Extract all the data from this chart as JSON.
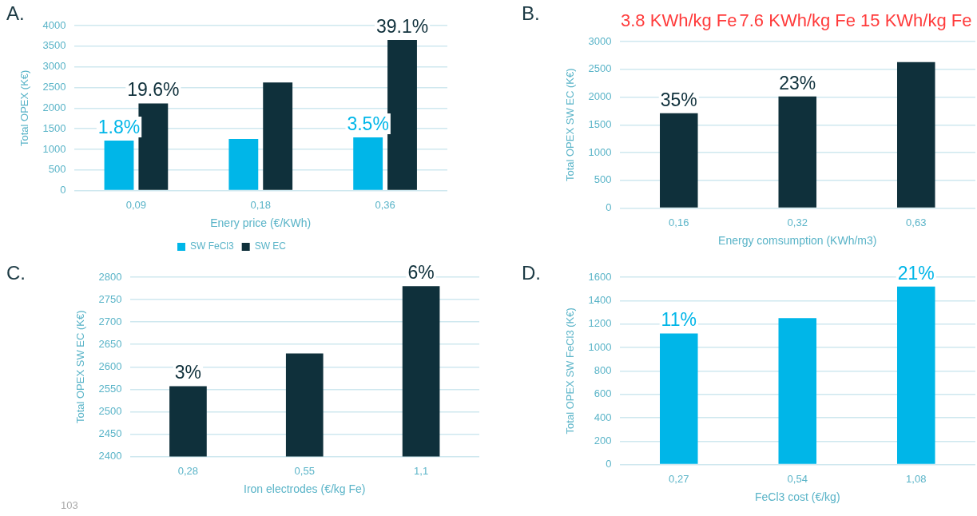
{
  "chart_data": [
    {
      "type": "bar",
      "title": "A.",
      "xlabel": "Enery price (€/KWh)",
      "ylabel": "Total OPEX (K€)",
      "categories": [
        "0,09",
        "0,18",
        "0,36"
      ],
      "series": [
        {
          "name": "SW FeCl3",
          "color": "#00b6e8",
          "values": [
            1210,
            1250,
            1290
          ]
        },
        {
          "name": "SW EC",
          "color": "#0f303b",
          "values": [
            2110,
            2620,
            3650
          ]
        }
      ],
      "ylim": [
        0,
        4000
      ],
      "yticks": [
        0,
        500,
        1000,
        1500,
        2000,
        2500,
        3000,
        3500,
        4000
      ],
      "grid": "y",
      "legend": "bottom",
      "annotations": [
        {
          "text": "1.8%",
          "x": "0,09",
          "y": 1210
        },
        {
          "text": "19.6%",
          "x": "0,09",
          "y": 2110
        },
        {
          "text": "3.5%",
          "x": "0,36",
          "y": 1290
        },
        {
          "text": "39.1%",
          "x": "0,36",
          "y": 3650
        }
      ]
    },
    {
      "type": "bar",
      "title": "B.",
      "xlabel": "Energy comsumption (KWh/m3)",
      "ylabel": "Total OPEX SW EC (K€)",
      "categories": [
        "0,16",
        "0,32",
        "0,63"
      ],
      "values": [
        1710,
        2010,
        2630
      ],
      "color": "#0f303b",
      "ylim": [
        0,
        3000
      ],
      "yticks": [
        0,
        500,
        1000,
        1500,
        2000,
        2500,
        3000
      ],
      "grid": "y",
      "annotations": [
        {
          "text": "35%",
          "x": "0,16",
          "y": 1710
        },
        {
          "text": "23%",
          "x": "0,32",
          "y": 2010
        },
        "3.8 KWh/kg Fe",
        "7.6 KWh/kg Fe",
        "15 KWh/kg Fe"
      ]
    },
    {
      "type": "bar",
      "title": "C.",
      "xlabel": "Iron electrodes (€/kg Fe)",
      "ylabel": "Total OPEX SW EC (K€)",
      "categories": [
        "0,28",
        "0,55",
        "1,1"
      ],
      "values": [
        2557,
        2630,
        2780
      ],
      "color": "#0f303b",
      "ylim": [
        2400,
        2800
      ],
      "yticks": [
        2400,
        2450,
        2500,
        2550,
        2600,
        2650,
        2700,
        2750,
        2800
      ],
      "grid": "y",
      "annotations": [
        {
          "text": "3%",
          "x": "0,28",
          "y": 2557
        },
        {
          "text": "6%",
          "x": "1,1",
          "y": 2780
        },
        "103"
      ]
    },
    {
      "type": "bar",
      "title": "D.",
      "xlabel": "FeCl3 cost (€/kg)",
      "ylabel": "Total OPEX SW FeCl3 (K€)",
      "categories": [
        "0,27",
        "0,54",
        "1,08"
      ],
      "values": [
        1120,
        1250,
        1520
      ],
      "color": "#00b6e8",
      "ylim": [
        0,
        1600
      ],
      "yticks": [
        0,
        200,
        400,
        600,
        800,
        1000,
        1200,
        1400,
        1600
      ],
      "grid": "y",
      "annotations": [
        {
          "text": "11%",
          "x": "0,27",
          "y": 1120
        },
        {
          "text": "21%",
          "x": "1,08",
          "y": 1520
        }
      ]
    }
  ]
}
